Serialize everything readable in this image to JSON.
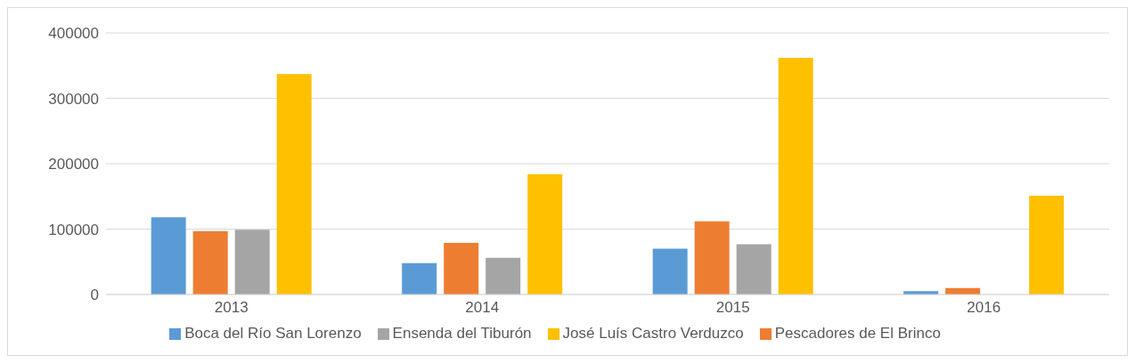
{
  "chart_data": {
    "type": "bar",
    "categories": [
      "2013",
      "2014",
      "2015",
      "2016"
    ],
    "series": [
      {
        "name": "Boca del Río San Lorenzo",
        "color": "#5b9bd5",
        "values": [
          118000,
          48000,
          70000,
          5000
        ]
      },
      {
        "name": "Pescadores de El Brinco",
        "color": "#ed7d31",
        "values": [
          97000,
          79000,
          112000,
          10000
        ]
      },
      {
        "name": "Ensenda del Tiburón",
        "color": "#a5a5a5",
        "values": [
          99000,
          56000,
          77000,
          0
        ]
      },
      {
        "name": "José Luís Castro Verduzco",
        "color": "#ffc000",
        "values": [
          337000,
          184000,
          362000,
          151000
        ]
      }
    ],
    "ylim": [
      0,
      400000
    ],
    "yticks": [
      0,
      100000,
      200000,
      300000,
      400000
    ],
    "grid": "y",
    "legend": "bottom"
  }
}
